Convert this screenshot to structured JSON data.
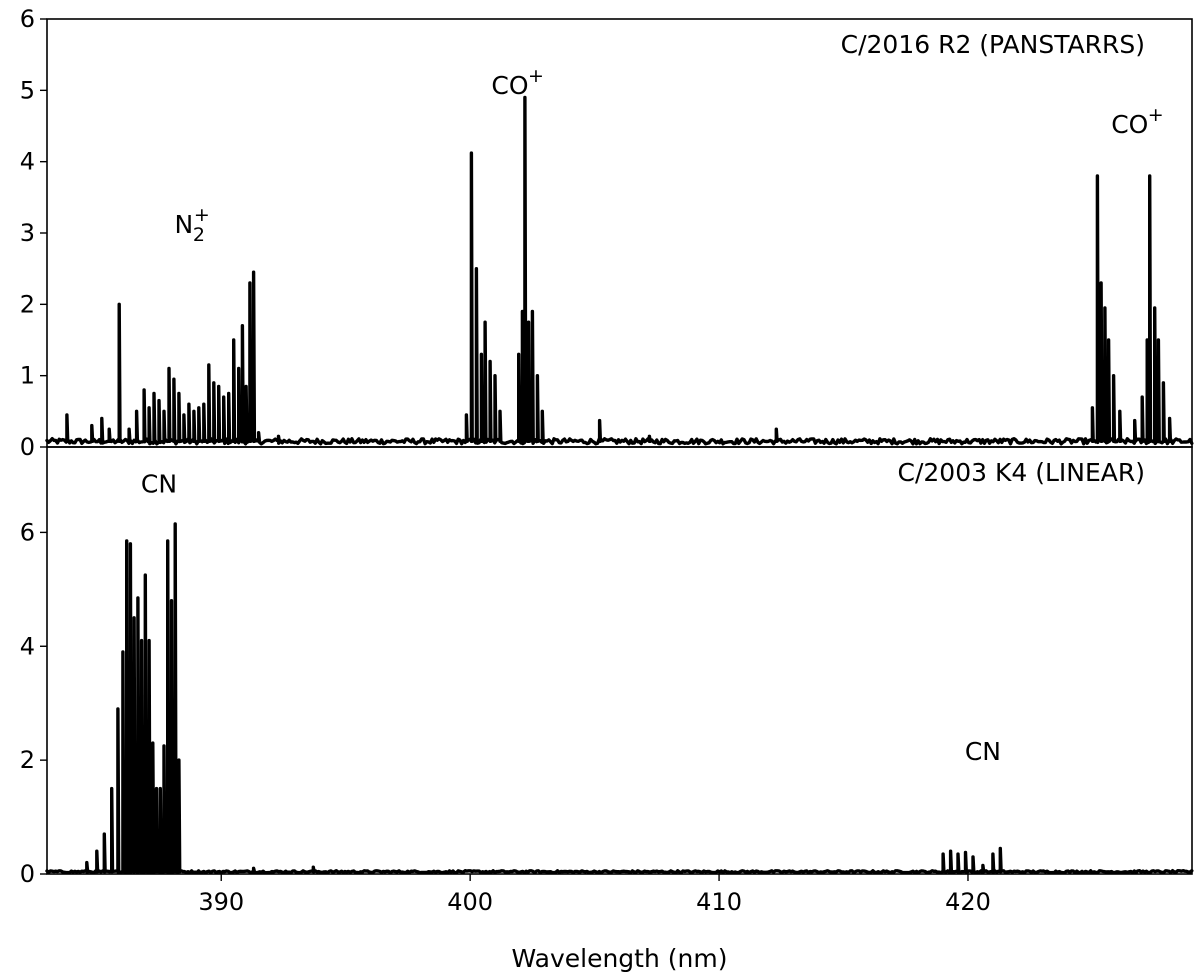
{
  "chart_data": [
    {
      "type": "line",
      "title": "C/2016 R2 (PANSTARRS)",
      "xlim": [
        383,
        429
      ],
      "ylim": [
        0,
        6
      ],
      "yticks": [
        0,
        1,
        2,
        3,
        4,
        5,
        6
      ],
      "grid": false,
      "series": [
        {
          "color": "#000000",
          "baseline": 0.08,
          "lines": [
            {
              "x": 383.8,
              "y": 0.45
            },
            {
              "x": 384.8,
              "y": 0.3
            },
            {
              "x": 385.2,
              "y": 0.4
            },
            {
              "x": 385.5,
              "y": 0.25
            },
            {
              "x": 385.9,
              "y": 2.0
            },
            {
              "x": 386.3,
              "y": 0.25
            },
            {
              "x": 386.6,
              "y": 0.5
            },
            {
              "x": 386.9,
              "y": 0.8
            },
            {
              "x": 387.1,
              "y": 0.55
            },
            {
              "x": 387.3,
              "y": 0.75
            },
            {
              "x": 387.5,
              "y": 0.65
            },
            {
              "x": 387.7,
              "y": 0.5
            },
            {
              "x": 387.9,
              "y": 1.1
            },
            {
              "x": 388.1,
              "y": 0.95
            },
            {
              "x": 388.3,
              "y": 0.75
            },
            {
              "x": 388.5,
              "y": 0.45
            },
            {
              "x": 388.7,
              "y": 0.6
            },
            {
              "x": 388.9,
              "y": 0.5
            },
            {
              "x": 389.1,
              "y": 0.55
            },
            {
              "x": 389.3,
              "y": 0.6
            },
            {
              "x": 389.5,
              "y": 1.15
            },
            {
              "x": 389.7,
              "y": 0.9
            },
            {
              "x": 389.9,
              "y": 0.85
            },
            {
              "x": 390.1,
              "y": 0.7
            },
            {
              "x": 390.3,
              "y": 0.75
            },
            {
              "x": 390.5,
              "y": 1.5
            },
            {
              "x": 390.7,
              "y": 1.1
            },
            {
              "x": 390.85,
              "y": 1.7
            },
            {
              "x": 391.0,
              "y": 0.85
            },
            {
              "x": 391.15,
              "y": 2.3
            },
            {
              "x": 391.3,
              "y": 2.45
            },
            {
              "x": 391.5,
              "y": 0.2
            },
            {
              "x": 392.3,
              "y": 0.15
            },
            {
              "x": 399.85,
              "y": 0.45
            },
            {
              "x": 400.05,
              "y": 4.12
            },
            {
              "x": 400.25,
              "y": 2.5
            },
            {
              "x": 400.45,
              "y": 1.3
            },
            {
              "x": 400.6,
              "y": 1.75
            },
            {
              "x": 400.8,
              "y": 1.2
            },
            {
              "x": 401.0,
              "y": 1.0
            },
            {
              "x": 401.2,
              "y": 0.5
            },
            {
              "x": 401.95,
              "y": 1.3
            },
            {
              "x": 402.1,
              "y": 1.9
            },
            {
              "x": 402.2,
              "y": 4.9
            },
            {
              "x": 402.35,
              "y": 1.75
            },
            {
              "x": 402.5,
              "y": 1.9
            },
            {
              "x": 402.7,
              "y": 1.0
            },
            {
              "x": 402.9,
              "y": 0.5
            },
            {
              "x": 405.2,
              "y": 0.37
            },
            {
              "x": 407.2,
              "y": 0.15
            },
            {
              "x": 412.3,
              "y": 0.25
            },
            {
              "x": 425.0,
              "y": 0.55
            },
            {
              "x": 425.2,
              "y": 3.8
            },
            {
              "x": 425.35,
              "y": 2.3
            },
            {
              "x": 425.5,
              "y": 1.95
            },
            {
              "x": 425.65,
              "y": 1.5
            },
            {
              "x": 425.85,
              "y": 1.0
            },
            {
              "x": 426.1,
              "y": 0.5
            },
            {
              "x": 426.7,
              "y": 0.37
            },
            {
              "x": 427.0,
              "y": 0.7
            },
            {
              "x": 427.2,
              "y": 1.5
            },
            {
              "x": 427.3,
              "y": 3.8
            },
            {
              "x": 427.5,
              "y": 1.95
            },
            {
              "x": 427.65,
              "y": 1.5
            },
            {
              "x": 427.85,
              "y": 0.9
            },
            {
              "x": 428.1,
              "y": 0.4
            }
          ]
        }
      ],
      "annotations": [
        {
          "text": "N",
          "sub": "2",
          "sup": "+",
          "x": 388.5,
          "y": 3.0
        },
        {
          "text": "CO",
          "sup": "+",
          "x": 401.6,
          "y": 4.95
        },
        {
          "text": "CO",
          "sup": "+",
          "x": 426.5,
          "y": 4.4
        }
      ]
    },
    {
      "type": "line",
      "title": "C/2003 K4 (LINEAR)",
      "xlabel": "Wavelength (nm)",
      "xlim": [
        383,
        429
      ],
      "ylim": [
        0,
        7.5
      ],
      "xticks": [
        390,
        400,
        410,
        420
      ],
      "yticks": [
        0,
        2,
        4,
        6
      ],
      "grid": false,
      "series": [
        {
          "color": "#000000",
          "baseline": 0.04,
          "lines": [
            {
              "x": 384.6,
              "y": 0.2
            },
            {
              "x": 385.0,
              "y": 0.4
            },
            {
              "x": 385.3,
              "y": 0.7
            },
            {
              "x": 385.6,
              "y": 1.5
            },
            {
              "x": 385.85,
              "y": 2.9
            },
            {
              "x": 386.05,
              "y": 3.9
            },
            {
              "x": 386.2,
              "y": 5.85
            },
            {
              "x": 386.35,
              "y": 5.8
            },
            {
              "x": 386.5,
              "y": 4.5
            },
            {
              "x": 386.65,
              "y": 4.85
            },
            {
              "x": 386.8,
              "y": 4.1
            },
            {
              "x": 386.95,
              "y": 5.25
            },
            {
              "x": 387.1,
              "y": 4.1
            },
            {
              "x": 387.25,
              "y": 2.3
            },
            {
              "x": 387.4,
              "y": 1.5
            },
            {
              "x": 387.55,
              "y": 1.5
            },
            {
              "x": 387.7,
              "y": 2.25
            },
            {
              "x": 387.85,
              "y": 5.85
            },
            {
              "x": 388.0,
              "y": 4.8
            },
            {
              "x": 388.15,
              "y": 6.15
            },
            {
              "x": 388.3,
              "y": 2.0
            },
            {
              "x": 391.3,
              "y": 0.1
            },
            {
              "x": 393.7,
              "y": 0.12
            },
            {
              "x": 419.0,
              "y": 0.35
            },
            {
              "x": 419.3,
              "y": 0.4
            },
            {
              "x": 419.6,
              "y": 0.35
            },
            {
              "x": 419.9,
              "y": 0.38
            },
            {
              "x": 420.2,
              "y": 0.3
            },
            {
              "x": 420.6,
              "y": 0.15
            },
            {
              "x": 421.0,
              "y": 0.35
            },
            {
              "x": 421.3,
              "y": 0.45
            }
          ]
        }
      ],
      "annotations": [
        {
          "text": "CN",
          "x": 387.5,
          "y": 6.7
        },
        {
          "text": "CN",
          "x": 420.6,
          "y": 2.0
        }
      ]
    }
  ]
}
